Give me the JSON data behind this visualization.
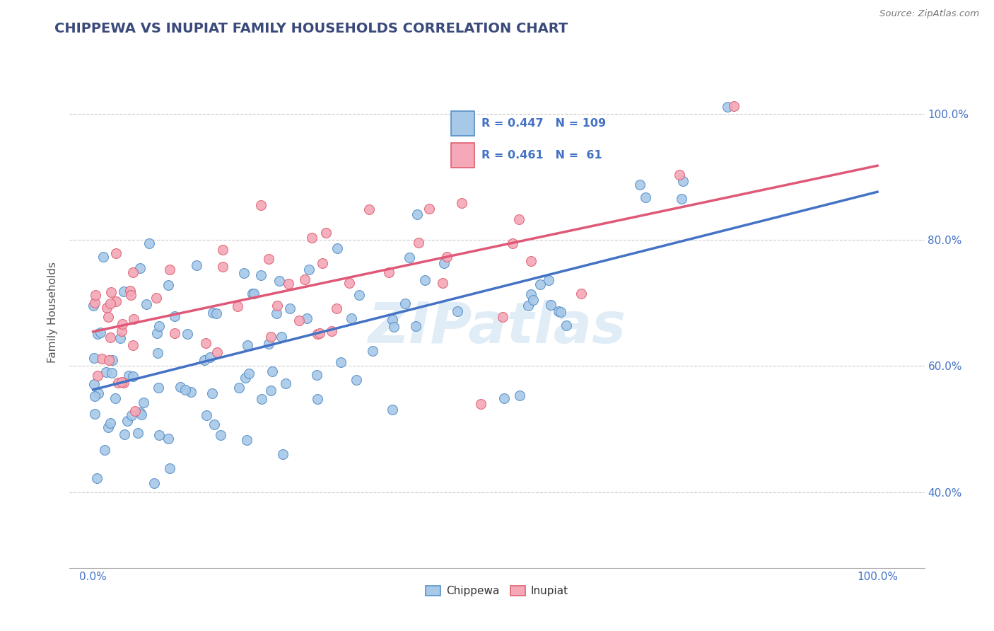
{
  "title": "CHIPPEWA VS INUPIAT FAMILY HOUSEHOLDS CORRELATION CHART",
  "source": "Source: ZipAtlas.com",
  "ylabel": "Family Households",
  "chippewa_color": "#a8c8e8",
  "inupiat_color": "#f4a8b8",
  "chippewa_edge_color": "#5590c8",
  "inupiat_edge_color": "#e06070",
  "chippewa_line_color": "#4472c4",
  "inupiat_line_color": "#e05878",
  "legend_chippewa_fill": "#a8c8e8",
  "legend_inupiat_fill": "#f4a8b8",
  "R_chippewa": 0.447,
  "N_chippewa": 109,
  "R_inupiat": 0.461,
  "N_inupiat": 61,
  "watermark": "ZIPatlas",
  "title_color": "#3a4a7a",
  "title_fontsize": 14,
  "axis_label_color": "#555555",
  "tick_color": "#4472c4",
  "right_tick_color": "#4472c4",
  "grid_color": "#cccccc",
  "ytick_values": [
    0.4,
    0.6,
    0.8,
    1.0
  ],
  "xtick_values": [
    0.0,
    1.0
  ],
  "xlim": [
    -0.03,
    1.06
  ],
  "ylim": [
    0.28,
    1.09
  ]
}
